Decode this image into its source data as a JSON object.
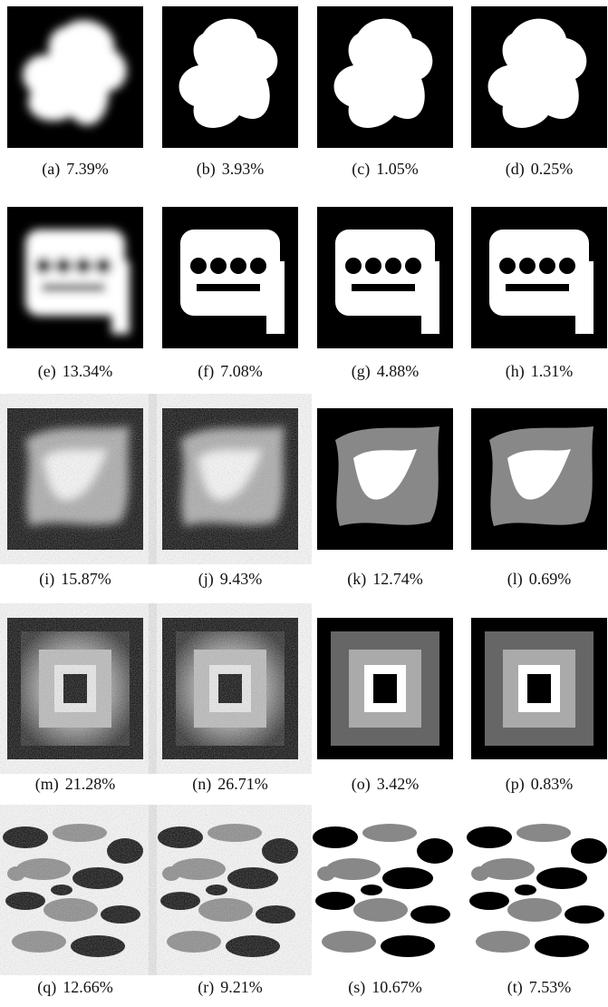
{
  "panels": [
    {
      "label": "(a)",
      "value": "7.39%"
    },
    {
      "label": "(b)",
      "value": "3.93%"
    },
    {
      "label": "(c)",
      "value": "1.05%"
    },
    {
      "label": "(d)",
      "value": "0.25%"
    },
    {
      "label": "(e)",
      "value": "13.34%"
    },
    {
      "label": "(f)",
      "value": "7.08%"
    },
    {
      "label": "(g)",
      "value": "4.88%"
    },
    {
      "label": "(h)",
      "value": "1.31%"
    },
    {
      "label": "(i)",
      "value": "15.87%"
    },
    {
      "label": "(j)",
      "value": "9.43%"
    },
    {
      "label": "(k)",
      "value": "12.74%"
    },
    {
      "label": "(l)",
      "value": "0.69%"
    },
    {
      "label": "(m)",
      "value": "21.28%"
    },
    {
      "label": "(n)",
      "value": "26.71%"
    },
    {
      "label": "(o)",
      "value": "3.42%"
    },
    {
      "label": "(p)",
      "value": "0.83%"
    },
    {
      "label": "(q)",
      "value": "12.66%"
    },
    {
      "label": "(r)",
      "value": "9.21%"
    },
    {
      "label": "(s)",
      "value": "10.67%"
    },
    {
      "label": "(t)",
      "value": "7.53%"
    }
  ]
}
